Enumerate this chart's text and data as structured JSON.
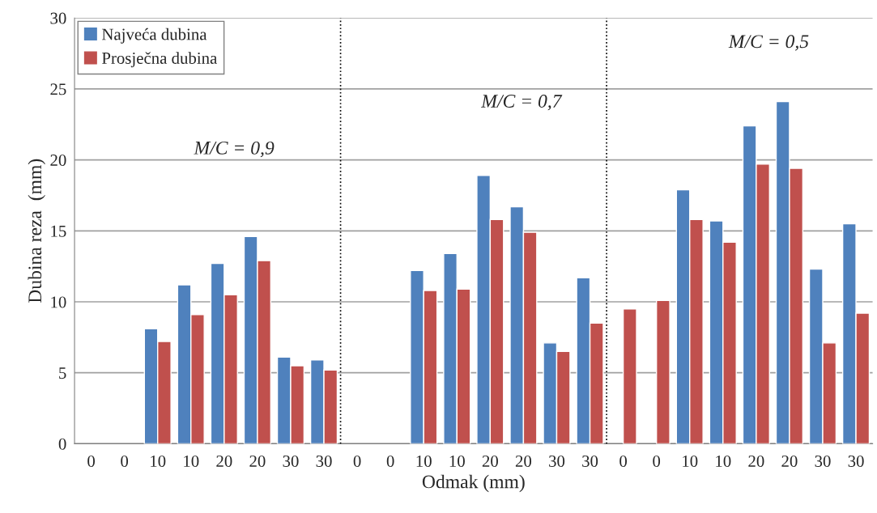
{
  "chart_data": {
    "type": "bar",
    "xlabel": "Odmak (mm)",
    "ylabel": "Dubina reza  (mm)",
    "categories": [
      "0",
      "0",
      "10",
      "10",
      "20",
      "20",
      "30",
      "30",
      "0",
      "0",
      "10",
      "10",
      "20",
      "20",
      "30",
      "30",
      "0",
      "0",
      "10",
      "10",
      "20",
      "20",
      "30",
      "30"
    ],
    "series": [
      {
        "name": "Najveća dubina",
        "color": "#4f81bd",
        "values": [
          null,
          null,
          8.1,
          11.2,
          12.7,
          14.6,
          6.1,
          5.9,
          null,
          null,
          12.2,
          13.4,
          18.9,
          16.7,
          7.1,
          11.7,
          null,
          null,
          17.9,
          15.7,
          22.4,
          24.1,
          12.3,
          15.5
        ]
      },
      {
        "name": "Prosječna dubina",
        "color": "#c0504d",
        "values": [
          null,
          null,
          7.2,
          9.1,
          10.5,
          12.9,
          5.5,
          5.2,
          null,
          null,
          10.8,
          10.9,
          15.8,
          14.9,
          6.5,
          8.5,
          9.5,
          10.1,
          15.8,
          14.2,
          19.7,
          19.4,
          7.1,
          9.2
        ]
      }
    ],
    "ylim": [
      0,
      30
    ],
    "yticks": [
      0,
      5,
      10,
      15,
      20,
      25,
      30
    ],
    "grid": "y",
    "legend": "top left",
    "annotations": [
      "M/C = 0,9",
      "M/C = 0,7",
      "M/C = 0,5"
    ]
  }
}
